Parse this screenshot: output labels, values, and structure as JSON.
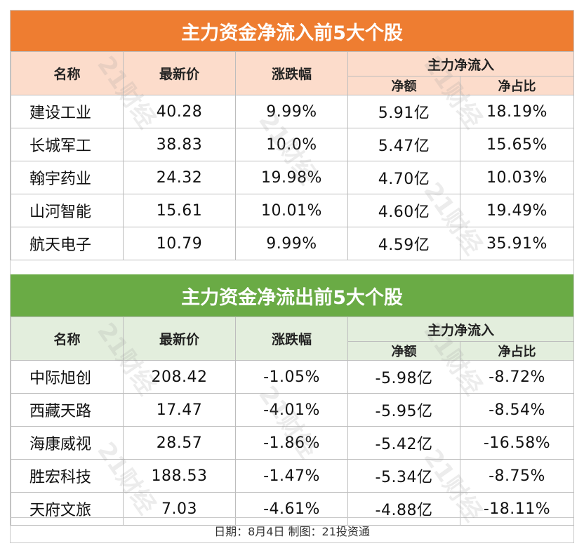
{
  "inflow": {
    "title": "主力资金净流入前5大个股",
    "headers": {
      "name": "名称",
      "price": "最新价",
      "change": "涨跌幅",
      "flow_group": "主力净流入",
      "net_amount": "净额",
      "net_ratio": "净占比"
    },
    "rows": [
      {
        "name": "建设工业",
        "price": "40.28",
        "change": "9.99%",
        "net_amount": "5.91亿",
        "net_ratio": "18.19%"
      },
      {
        "name": "长城军工",
        "price": "38.83",
        "change": "10.0%",
        "net_amount": "5.47亿",
        "net_ratio": "15.65%"
      },
      {
        "name": "翰宇药业",
        "price": "24.32",
        "change": "19.98%",
        "net_amount": "4.70亿",
        "net_ratio": "10.03%"
      },
      {
        "name": "山河智能",
        "price": "15.61",
        "change": "10.01%",
        "net_amount": "4.60亿",
        "net_ratio": "19.49%"
      },
      {
        "name": "航天电子",
        "price": "10.79",
        "change": "9.99%",
        "net_amount": "4.59亿",
        "net_ratio": "35.91%"
      }
    ]
  },
  "outflow": {
    "title": "主力资金净流出前5大个股",
    "headers": {
      "name": "名称",
      "price": "最新价",
      "change": "涨跌幅",
      "flow_group": "主力净流入",
      "net_amount": "净额",
      "net_ratio": "净占比"
    },
    "rows": [
      {
        "name": "中际旭创",
        "price": "208.42",
        "change": "-1.05%",
        "net_amount": "-5.98亿",
        "net_ratio": "-8.72%"
      },
      {
        "name": "西藏天路",
        "price": "17.47",
        "change": "-4.01%",
        "net_amount": "-5.95亿",
        "net_ratio": "-8.54%"
      },
      {
        "name": "海康威视",
        "price": "28.57",
        "change": "-1.86%",
        "net_amount": "-5.42亿",
        "net_ratio": "-16.58%"
      },
      {
        "name": "胜宏科技",
        "price": "188.53",
        "change": "-1.47%",
        "net_amount": "-5.34亿",
        "net_ratio": "-8.75%"
      },
      {
        "name": "天府文旅",
        "price": "7.03",
        "change": "-4.61%",
        "net_amount": "-4.88亿",
        "net_ratio": "-18.11%"
      }
    ]
  },
  "footer": "日期：8月4日 制图：21投资通",
  "watermark": "21财经",
  "colors": {
    "inflow_banner": "#ee7d31",
    "inflow_header": "#fcdccb",
    "outflow_banner": "#6aab45",
    "outflow_header": "#e3eedd"
  }
}
